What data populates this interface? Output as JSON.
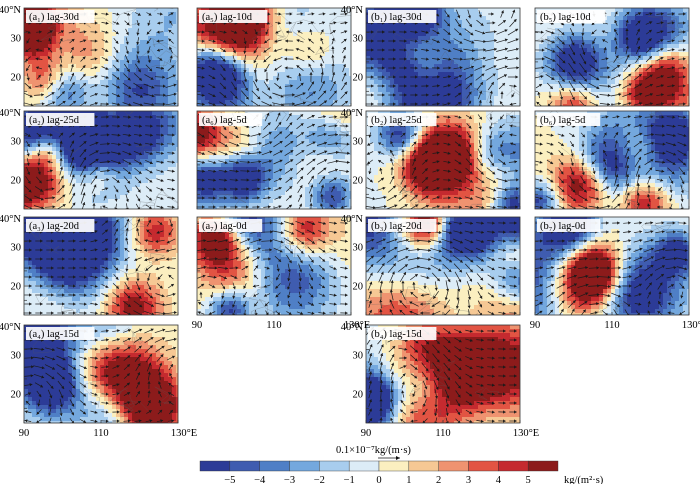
{
  "chart_data": {
    "type": "heatmap",
    "title": "",
    "xlabel": "",
    "ylabel": "",
    "x_ticks": [
      "90",
      "110",
      "130°E"
    ],
    "y_ticks": [
      "40°N",
      "30",
      "20"
    ],
    "xlim": [
      90,
      130
    ],
    "ylim": [
      12,
      40
    ],
    "colorbar": {
      "ticks": [
        "−5",
        "−4",
        "−3",
        "−2",
        "−1",
        "0",
        "1",
        "2",
        "3",
        "4",
        "5"
      ],
      "unit": "kg/(m²·s)",
      "colors": [
        "#2c3b97",
        "#3f5cb0",
        "#4f7fc6",
        "#74a8de",
        "#a8cdee",
        "#dcecf7",
        "#fbefc0",
        "#f6c894",
        "#ef9370",
        "#e25443",
        "#c52a2f",
        "#8c1b1b"
      ]
    },
    "vector_reference": {
      "label": "0.1×10⁻⁷kg/(m·s)"
    },
    "panels": [
      {
        "label": "(a₁) lag-30d",
        "seed": 11
      },
      {
        "label": "(a₅) lag-10d",
        "seed": 23
      },
      {
        "label": "(b₁) lag-30d",
        "seed": 37
      },
      {
        "label": "(b₅) lag-10d",
        "seed": 41
      },
      {
        "label": "(a₂) lag-25d",
        "seed": 53
      },
      {
        "label": "(a₆) lag-5d",
        "seed": 67
      },
      {
        "label": "(b₂) lag-25d",
        "seed": 71
      },
      {
        "label": "(b₆) lag-5d",
        "seed": 83
      },
      {
        "label": "(a₃) lag-20d",
        "seed": 97
      },
      {
        "label": "(a₇) lag-0d",
        "seed": 101
      },
      {
        "label": "(b₃) lag-20d",
        "seed": 113
      },
      {
        "label": "(b₇) lag-0d",
        "seed": 127
      },
      {
        "label": "(a₄) lag-15d",
        "seed": 131
      },
      {
        "label": "(b₄) lag-15d",
        "seed": 139
      }
    ]
  }
}
